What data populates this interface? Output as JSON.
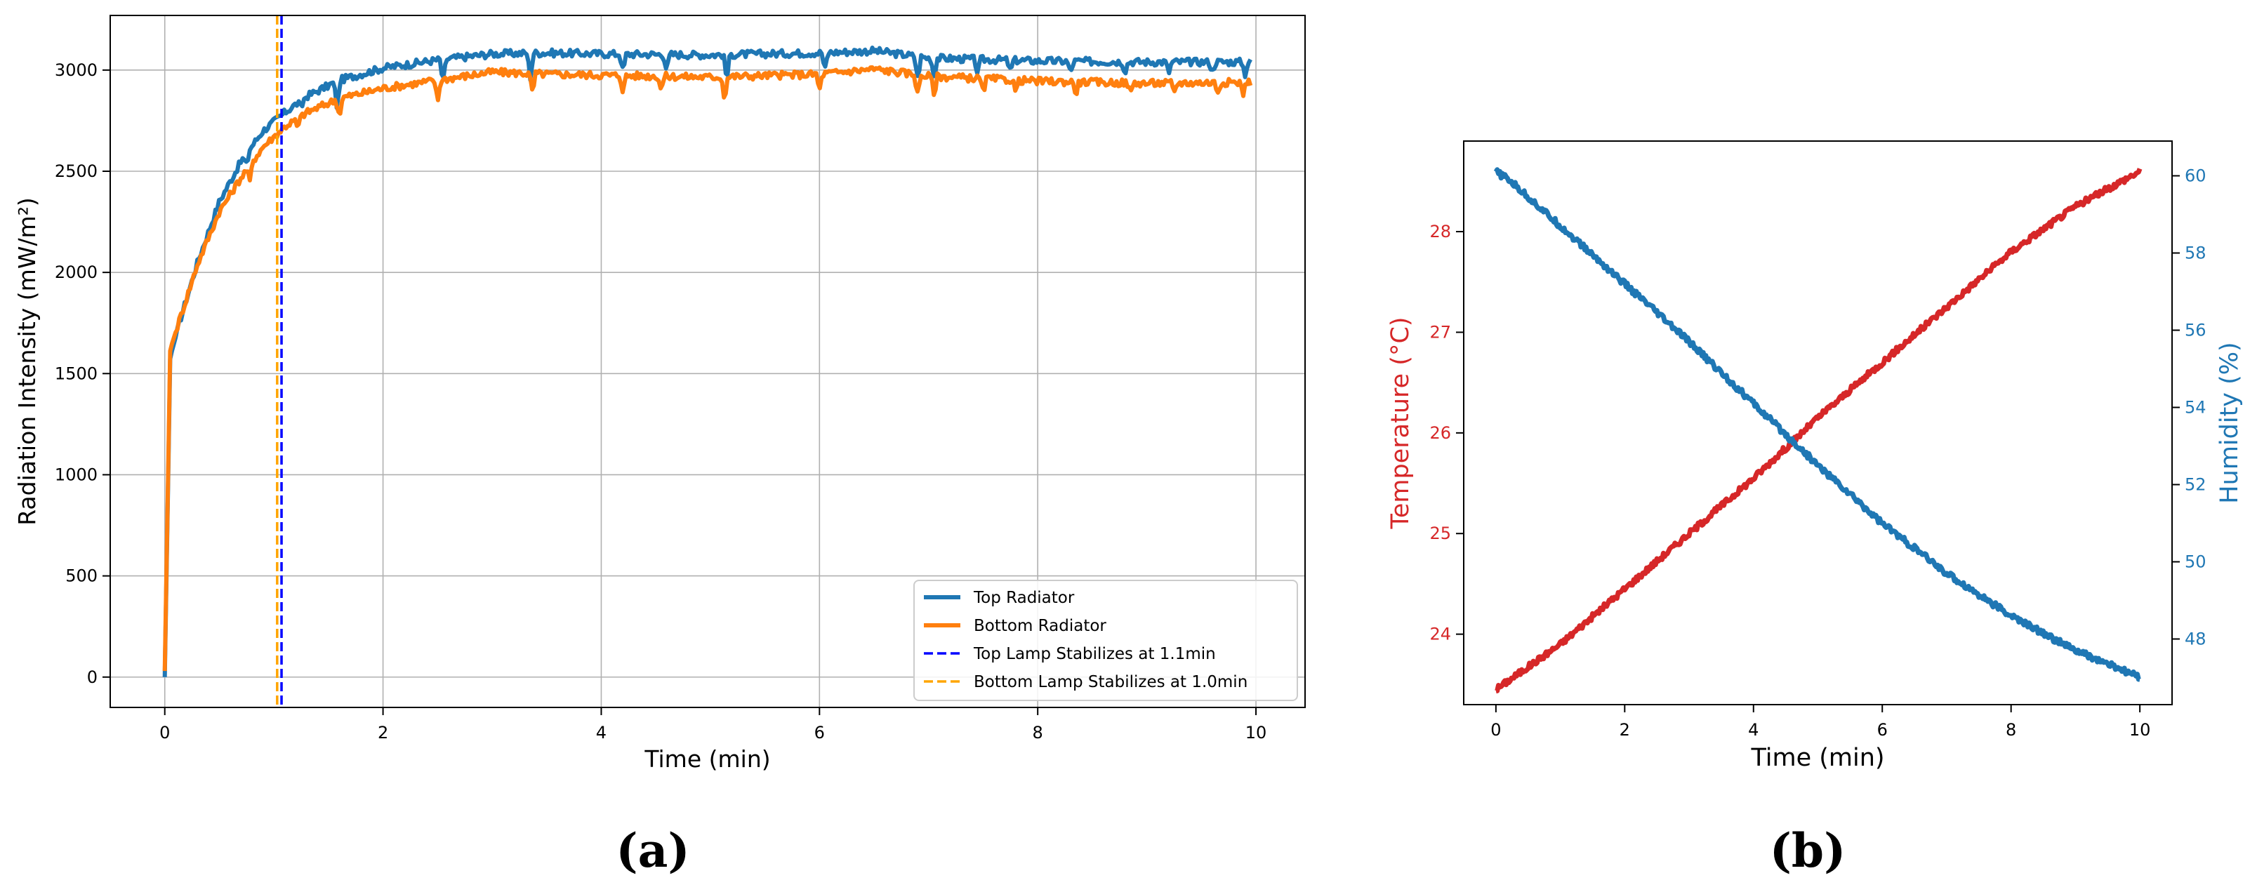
{
  "chart_data": [
    {
      "type": "line",
      "panel_label": "(a)",
      "title": "",
      "xlabel": "Time (min)",
      "ylabel": "Radiation Intensity (mW/m²)",
      "xlim": [
        -0.5,
        10.45
      ],
      "ylim": [
        -150,
        3270
      ],
      "x_ticks": [
        0,
        2,
        4,
        6,
        8,
        10
      ],
      "y_ticks": [
        0,
        500,
        1000,
        1500,
        2000,
        2500,
        3000
      ],
      "grid": true,
      "legend_position": "lower-right",
      "series": [
        {
          "name": "Top Radiator",
          "color": "#1f77b4",
          "style": "solid",
          "anchors": [
            [
              0,
              0
            ],
            [
              0.05,
              1580
            ],
            [
              0.15,
              1780
            ],
            [
              0.3,
              2050
            ],
            [
              0.5,
              2350
            ],
            [
              0.7,
              2550
            ],
            [
              0.9,
              2700
            ],
            [
              1.1,
              2790
            ],
            [
              1.3,
              2870
            ],
            [
              1.6,
              2950
            ],
            [
              2,
              3010
            ],
            [
              2.5,
              3050
            ],
            [
              3,
              3080
            ],
            [
              3.5,
              3085
            ],
            [
              4,
              3080
            ],
            [
              5,
              3075
            ],
            [
              6,
              3085
            ],
            [
              6.5,
              3095
            ],
            [
              7,
              3060
            ],
            [
              8,
              3045
            ],
            [
              9,
              3040
            ],
            [
              9.9,
              3040
            ]
          ],
          "dips": [
            [
              0.75,
              -60
            ],
            [
              1.25,
              -40
            ],
            [
              1.58,
              -140
            ],
            [
              2.55,
              -120
            ],
            [
              3.35,
              -120
            ],
            [
              4.2,
              -90
            ],
            [
              4.6,
              -80
            ],
            [
              5.15,
              -130
            ],
            [
              6.05,
              -90
            ],
            [
              6.9,
              -110
            ],
            [
              7.05,
              -90
            ],
            [
              7.45,
              -70
            ],
            [
              7.75,
              -60
            ],
            [
              8.3,
              -60
            ],
            [
              8.8,
              -50
            ],
            [
              9.2,
              -55
            ],
            [
              9.6,
              -50
            ],
            [
              9.9,
              -60
            ]
          ],
          "ripple_amp": 18
        },
        {
          "name": "Bottom Radiator",
          "color": "#ff7f0e",
          "style": "solid",
          "anchors": [
            [
              0,
              30
            ],
            [
              0.05,
              1620
            ],
            [
              0.15,
              1790
            ],
            [
              0.3,
              2040
            ],
            [
              0.5,
              2300
            ],
            [
              0.7,
              2470
            ],
            [
              0.9,
              2620
            ],
            [
              1.1,
              2720
            ],
            [
              1.3,
              2790
            ],
            [
              1.6,
              2860
            ],
            [
              2,
              2910
            ],
            [
              2.5,
              2950
            ],
            [
              3,
              2990
            ],
            [
              3.5,
              2980
            ],
            [
              4,
              2975
            ],
            [
              5,
              2965
            ],
            [
              6,
              2980
            ],
            [
              6.5,
              3005
            ],
            [
              7,
              2970
            ],
            [
              8,
              2945
            ],
            [
              9,
              2935
            ],
            [
              9.9,
              2940
            ]
          ],
          "dips": [
            [
              0.78,
              -80
            ],
            [
              1.22,
              -50
            ],
            [
              1.6,
              -90
            ],
            [
              2.5,
              -110
            ],
            [
              3.37,
              -100
            ],
            [
              4.2,
              -80
            ],
            [
              4.55,
              -70
            ],
            [
              5.13,
              -110
            ],
            [
              6.0,
              -80
            ],
            [
              6.9,
              -100
            ],
            [
              7.05,
              -90
            ],
            [
              7.5,
              -70
            ],
            [
              7.8,
              -60
            ],
            [
              8.35,
              -60
            ],
            [
              8.85,
              -55
            ],
            [
              9.25,
              -55
            ],
            [
              9.65,
              -50
            ],
            [
              9.88,
              -60
            ]
          ],
          "ripple_amp": 18
        }
      ],
      "vlines": [
        {
          "name": "Top Lamp Stabilizes at 1.1min",
          "x": 1.07,
          "color": "#0000ff",
          "style": "dashed"
        },
        {
          "name": "Bottom Lamp Stabilizes at 1.0min",
          "x": 1.03,
          "color": "#ffa500",
          "style": "dashed"
        }
      ],
      "legend": [
        {
          "label": "Top Radiator",
          "color": "#1f77b4",
          "style": "solid"
        },
        {
          "label": "Bottom Radiator",
          "color": "#ff7f0e",
          "style": "solid"
        },
        {
          "label": "Top Lamp Stabilizes at 1.1min",
          "color": "#0000ff",
          "style": "dashed"
        },
        {
          "label": "Bottom Lamp Stabilizes at 1.0min",
          "color": "#ffa500",
          "style": "dashed"
        }
      ]
    },
    {
      "type": "line",
      "panel_label": "(b)",
      "title": "",
      "xlabel": "Time (min)",
      "ylabel_left": "Temperature (°C)",
      "ylabel_right": "Humidity (%)",
      "xlim": [
        -0.5,
        10.5
      ],
      "ylim_left": [
        23.3,
        28.9
      ],
      "ylim_right": [
        46.3,
        60.9
      ],
      "x_ticks": [
        0,
        2,
        4,
        6,
        8,
        10
      ],
      "y_ticks_left": [
        24,
        25,
        26,
        27,
        28
      ],
      "y_ticks_right": [
        48,
        50,
        52,
        54,
        56,
        58,
        60
      ],
      "grid": false,
      "left_axis_color": "#d62728",
      "right_axis_color": "#1f77b4",
      "series": [
        {
          "name": "Temperature",
          "axis": "left",
          "color": "#d62728",
          "anchors": [
            [
              0,
              23.45
            ],
            [
              1,
              23.9
            ],
            [
              2,
              24.45
            ],
            [
              3,
              25.0
            ],
            [
              4,
              25.55
            ],
            [
              5,
              26.15
            ],
            [
              6,
              26.7
            ],
            [
              7,
              27.25
            ],
            [
              8,
              27.8
            ],
            [
              9,
              28.25
            ],
            [
              10,
              28.6
            ]
          ]
        },
        {
          "name": "Humidity",
          "axis": "right",
          "color": "#1f77b4",
          "anchors": [
            [
              0,
              60.1
            ],
            [
              0.2,
              59.9
            ],
            [
              1,
              58.7
            ],
            [
              2,
              57.2
            ],
            [
              3,
              55.7
            ],
            [
              4,
              54.1
            ],
            [
              5,
              52.5
            ],
            [
              6,
              51.0
            ],
            [
              7,
              49.7
            ],
            [
              8,
              48.6
            ],
            [
              9,
              47.7
            ],
            [
              10,
              47.0
            ]
          ]
        }
      ]
    }
  ]
}
